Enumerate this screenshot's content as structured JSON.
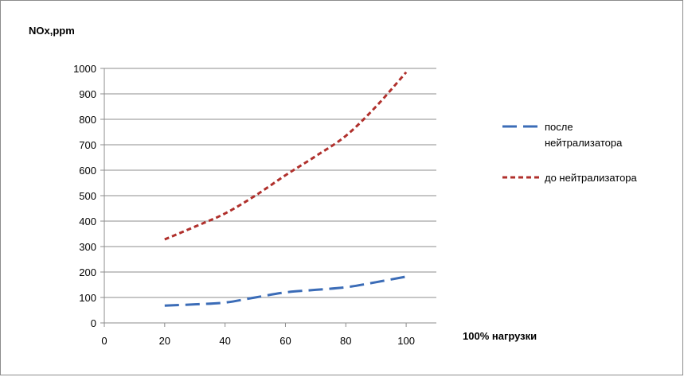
{
  "chart_data": {
    "type": "line",
    "ylabel": "NOx,ppm",
    "xlabel": "100% нагрузки",
    "x": [
      20,
      30,
      40,
      50,
      60,
      70,
      80,
      90,
      100
    ],
    "xlim": [
      0,
      110
    ],
    "ylim": [
      0,
      1000
    ],
    "xticks": [
      0,
      20,
      40,
      60,
      80,
      100
    ],
    "yticks": [
      0,
      100,
      200,
      300,
      400,
      500,
      600,
      700,
      800,
      900,
      1000
    ],
    "grid": "horizontal",
    "legend_position": "right",
    "series": [
      {
        "name_lines": [
          "после",
          "нейтрализатора"
        ],
        "values": [
          68,
          73,
          80,
          100,
          120,
          130,
          140,
          160,
          182
        ],
        "color": "#3b6cb7",
        "dash": "long-dash"
      },
      {
        "name_lines": [
          "до нейтрализатора"
        ],
        "values": [
          328,
          378,
          430,
          500,
          580,
          655,
          735,
          850,
          985
        ],
        "color": "#b0302c",
        "dash": "short-dash"
      }
    ]
  }
}
